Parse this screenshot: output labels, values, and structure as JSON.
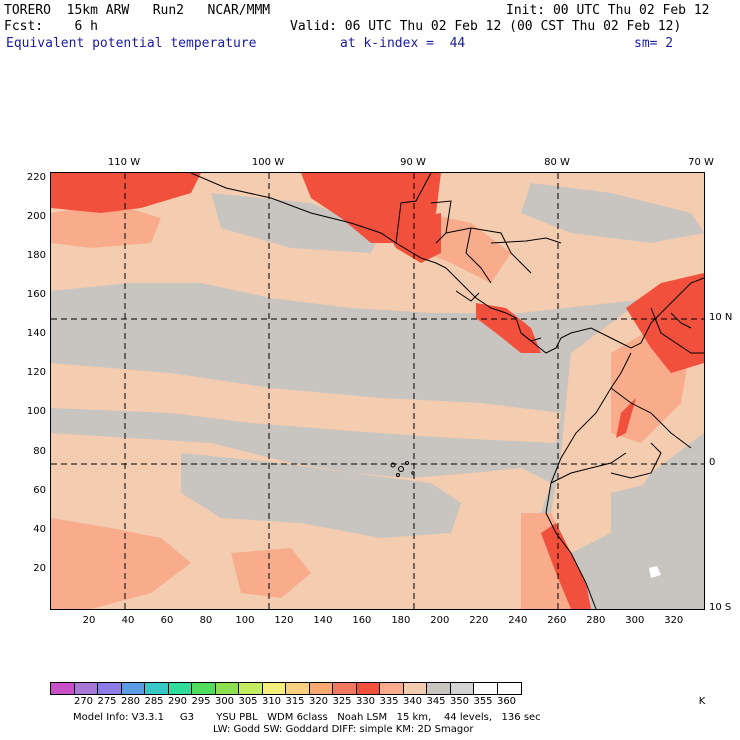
{
  "header": {
    "model": "TORERO  15km ARW   Run2   NCAR/MMM",
    "init": "Init: 00 UTC Thu 02 Feb 12",
    "fcst": "Fcst:    6 h",
    "valid": "Valid: 06 UTC Thu 02 Feb 12 (00 CST Thu 02 Feb 12)",
    "field": "Equivalent potential temperature",
    "level": "at k-index =  44",
    "smooth": "sm= 2"
  },
  "map": {
    "lon_labels": [
      "110 W",
      "100 W",
      "90 W",
      "80 W",
      "70 W"
    ],
    "lat_labels": [
      "10 N",
      "0",
      "10 S"
    ],
    "x_ticks": [
      "20",
      "40",
      "60",
      "80",
      "100",
      "120",
      "140",
      "160",
      "180",
      "200",
      "220",
      "240",
      "260",
      "280",
      "300",
      "320"
    ],
    "y_ticks": [
      "220",
      "200",
      "180",
      "160",
      "140",
      "120",
      "100",
      "80",
      "60",
      "40",
      "20"
    ],
    "grid_x": 335,
    "grid_y": 223
  },
  "colorbar": {
    "unit": "K",
    "labels": [
      "270",
      "275",
      "280",
      "285",
      "290",
      "295",
      "300",
      "305",
      "310",
      "315",
      "320",
      "325",
      "330",
      "335",
      "340",
      "345",
      "350",
      "355",
      "360"
    ],
    "colors": [
      "#c850c8",
      "#a878d8",
      "#8c7ce8",
      "#5c9ce4",
      "#38c8c8",
      "#30dc9c",
      "#50dc5c",
      "#8ce050",
      "#c4ec60",
      "#f4f07c",
      "#f8d080",
      "#f8a870",
      "#f47860",
      "#f0503c",
      "#f8ac8c",
      "#f4ccb0",
      "#c8c4c0",
      "#d4d4d4",
      "#ffffff",
      "#ffffff"
    ]
  },
  "footer": {
    "line1": "Model Info: V3.3.1     G3       YSU PBL   WDM 6class   Noah LSM   15 km,    44 levels,   136 sec",
    "line2": "LW: Godd SW: Goddard DIFF: simple KM: 2D Smagor"
  }
}
